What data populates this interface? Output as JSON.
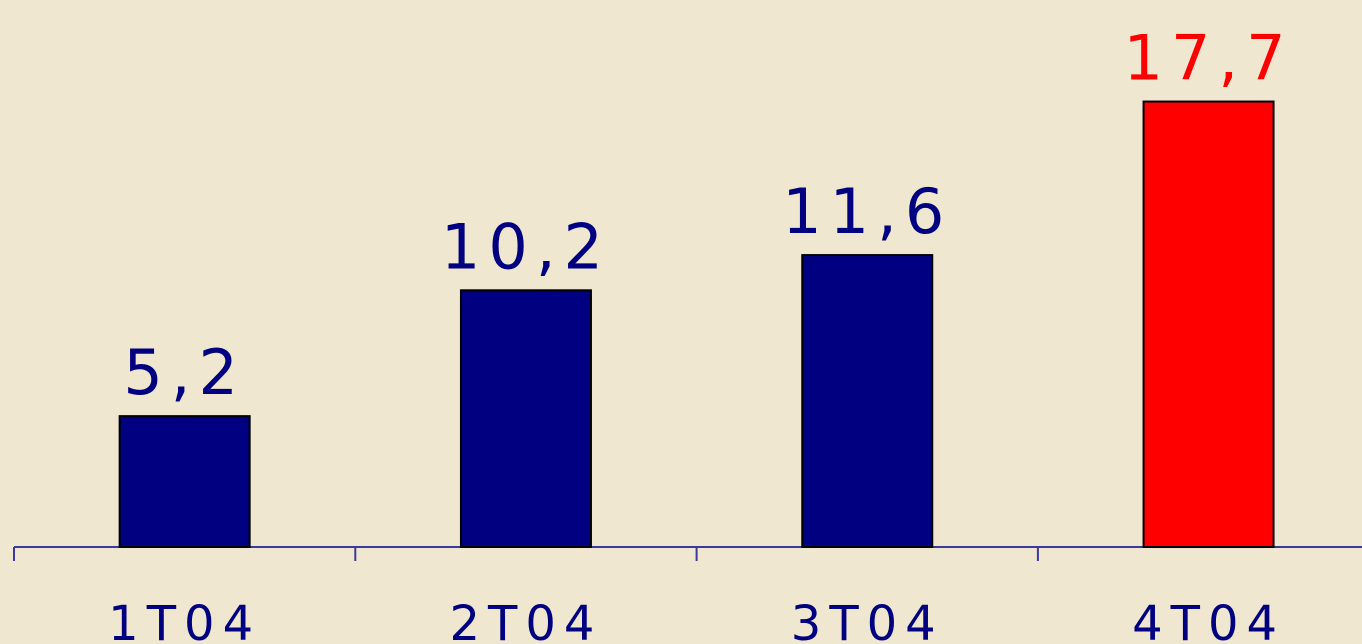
{
  "chart_data": {
    "type": "bar",
    "categories": [
      "1T04",
      "2T04",
      "3T04",
      "4T04"
    ],
    "values": [
      5.2,
      10.2,
      11.6,
      17.7
    ],
    "value_labels": [
      "5,2",
      "10,2",
      "11,6",
      "17,7"
    ],
    "colors": [
      "#000080",
      "#000080",
      "#000080",
      "#ff0000"
    ],
    "ylim": [
      0,
      18
    ]
  }
}
